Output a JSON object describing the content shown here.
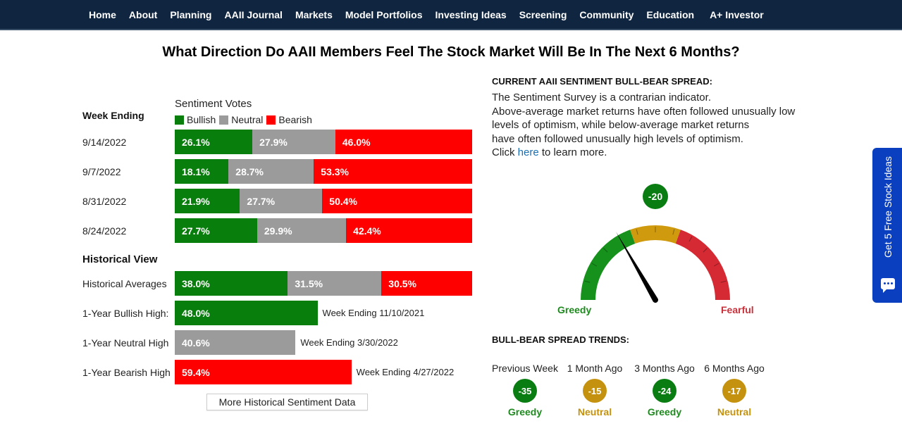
{
  "nav": {
    "items": [
      "Home",
      "About",
      "Planning",
      "AAII Journal",
      "Markets",
      "Model Portfolios",
      "Investing Ideas",
      "Screening",
      "Community",
      "Education",
      "A+ Investor"
    ]
  },
  "page_title": "What Direction Do AAII Members Feel The Stock Market Will Be In The Next 6 Months?",
  "sentiment": {
    "votes_title": "Sentiment Votes",
    "week_ending_label": "Week Ending",
    "legend": [
      {
        "label": "Bullish",
        "color": "#087f0c"
      },
      {
        "label": "Neutral",
        "color": "#9b9b9b"
      },
      {
        "label": "Bearish",
        "color": "#ff0000"
      }
    ],
    "weeks": [
      {
        "date": "9/14/2022",
        "bullish": 26.1,
        "neutral": 27.9,
        "bearish": 46.0,
        "bullish_label": "26.1%",
        "neutral_label": "27.9%",
        "bearish_label": "46.0%"
      },
      {
        "date": "9/7/2022",
        "bullish": 18.1,
        "neutral": 28.7,
        "bearish": 53.3,
        "bullish_label": "18.1%",
        "neutral_label": "28.7%",
        "bearish_label": "53.3%"
      },
      {
        "date": "8/31/2022",
        "bullish": 21.9,
        "neutral": 27.7,
        "bearish": 50.4,
        "bullish_label": "21.9%",
        "neutral_label": "27.7%",
        "bearish_label": "50.4%"
      },
      {
        "date": "8/24/2022",
        "bullish": 27.7,
        "neutral": 29.9,
        "bearish": 42.4,
        "bullish_label": "27.7%",
        "neutral_label": "29.9%",
        "bearish_label": "42.4%"
      }
    ],
    "historical_view_label": "Historical View",
    "historical_averages": {
      "label": "Historical Averages",
      "bullish": 38.0,
      "neutral": 31.5,
      "bearish": 30.5,
      "bullish_label": "38.0%",
      "neutral_label": "31.5%",
      "bearish_label": "30.5%"
    },
    "highs": [
      {
        "label": "1-Year Bullish High:",
        "type": "bullish",
        "value": 48.0,
        "value_label": "48.0%",
        "note": "Week Ending 11/10/2021"
      },
      {
        "label": "1-Year Neutral High",
        "type": "neutral",
        "value": 40.6,
        "value_label": "40.6%",
        "note": "Week Ending 3/30/2022"
      },
      {
        "label": "1-Year Bearish High",
        "type": "bearish",
        "value": 59.4,
        "value_label": "59.4%",
        "note": "Week Ending 4/27/2022"
      }
    ],
    "more_button": "More Historical Sentiment Data"
  },
  "spread": {
    "heading": "CURRENT AAII SENTIMENT BULL-BEAR SPREAD:",
    "desc_lines": [
      "The Sentiment Survey is a contrarian indicator.",
      "Above-average market returns have often followed unusually low",
      "levels of optimism, while below-average market returns",
      "have often followed unusually high levels of optimism."
    ],
    "click_prefix": "Click ",
    "click_link": "here",
    "click_suffix": " to learn more.",
    "gauge": {
      "value": -20,
      "value_label": "-20",
      "min": -60,
      "max": 60,
      "left_label": "Greedy",
      "right_label": "Fearful",
      "colors": {
        "greedy": "#16921c",
        "neutral": "#cf9a0e",
        "fearful": "#d52a33"
      }
    }
  },
  "trends": {
    "heading": "BULL-BEAR SPREAD TRENDS:",
    "items": [
      {
        "label": "Previous Week",
        "value": "-35",
        "state": "Greedy",
        "color": "#0a7d12",
        "text_color": "#1f8a1f"
      },
      {
        "label": "1 Month Ago",
        "value": "-15",
        "state": "Neutral",
        "color": "#c4920e",
        "text_color": "#c4920e"
      },
      {
        "label": "3 Months Ago",
        "value": "-24",
        "state": "Greedy",
        "color": "#0a7d12",
        "text_color": "#1f8a1f"
      },
      {
        "label": "6 Months Ago",
        "value": "-17",
        "state": "Neutral",
        "color": "#c4920e",
        "text_color": "#c4920e"
      }
    ]
  },
  "side_tab": {
    "label": "Get 5 Free Stock Ideas"
  }
}
